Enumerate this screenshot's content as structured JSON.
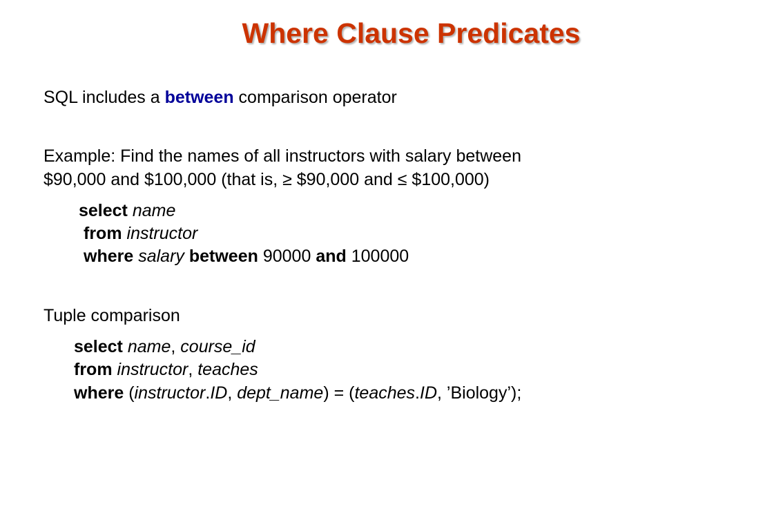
{
  "slide": {
    "title": "Where Clause Predicates",
    "intro": {
      "pre": "SQL includes a ",
      "keyword": "between",
      "post": " comparison operator"
    },
    "example": {
      "line1": "Example:  Find the names of all instructors with salary between",
      "line2": "$90,000 and $100,000 (that is, ≥ $90,000 and ≤ $100,000)"
    },
    "query1": {
      "select_kw": "select",
      "select_attr": "name",
      "from_kw": "from",
      "from_rel": "instructor",
      "where_kw": "where",
      "where_attr": "salary",
      "between_kw": "between",
      "low": "90000",
      "and_kw": "and",
      "high": "100000"
    },
    "tuple_heading": "Tuple comparison",
    "query2": {
      "select_kw": "select",
      "attr1": "name",
      "attr2": "course_id",
      "from_kw": "from",
      "rel1": "instructor",
      "rel2": "teaches",
      "where_kw": "where",
      "lhs1_rel": "instructor",
      "lhs1_attr": "ID",
      "lhs2": "dept_name",
      "rhs1_rel": "teaches",
      "rhs1_attr": "ID",
      "rhs2": "’Biology’"
    }
  }
}
